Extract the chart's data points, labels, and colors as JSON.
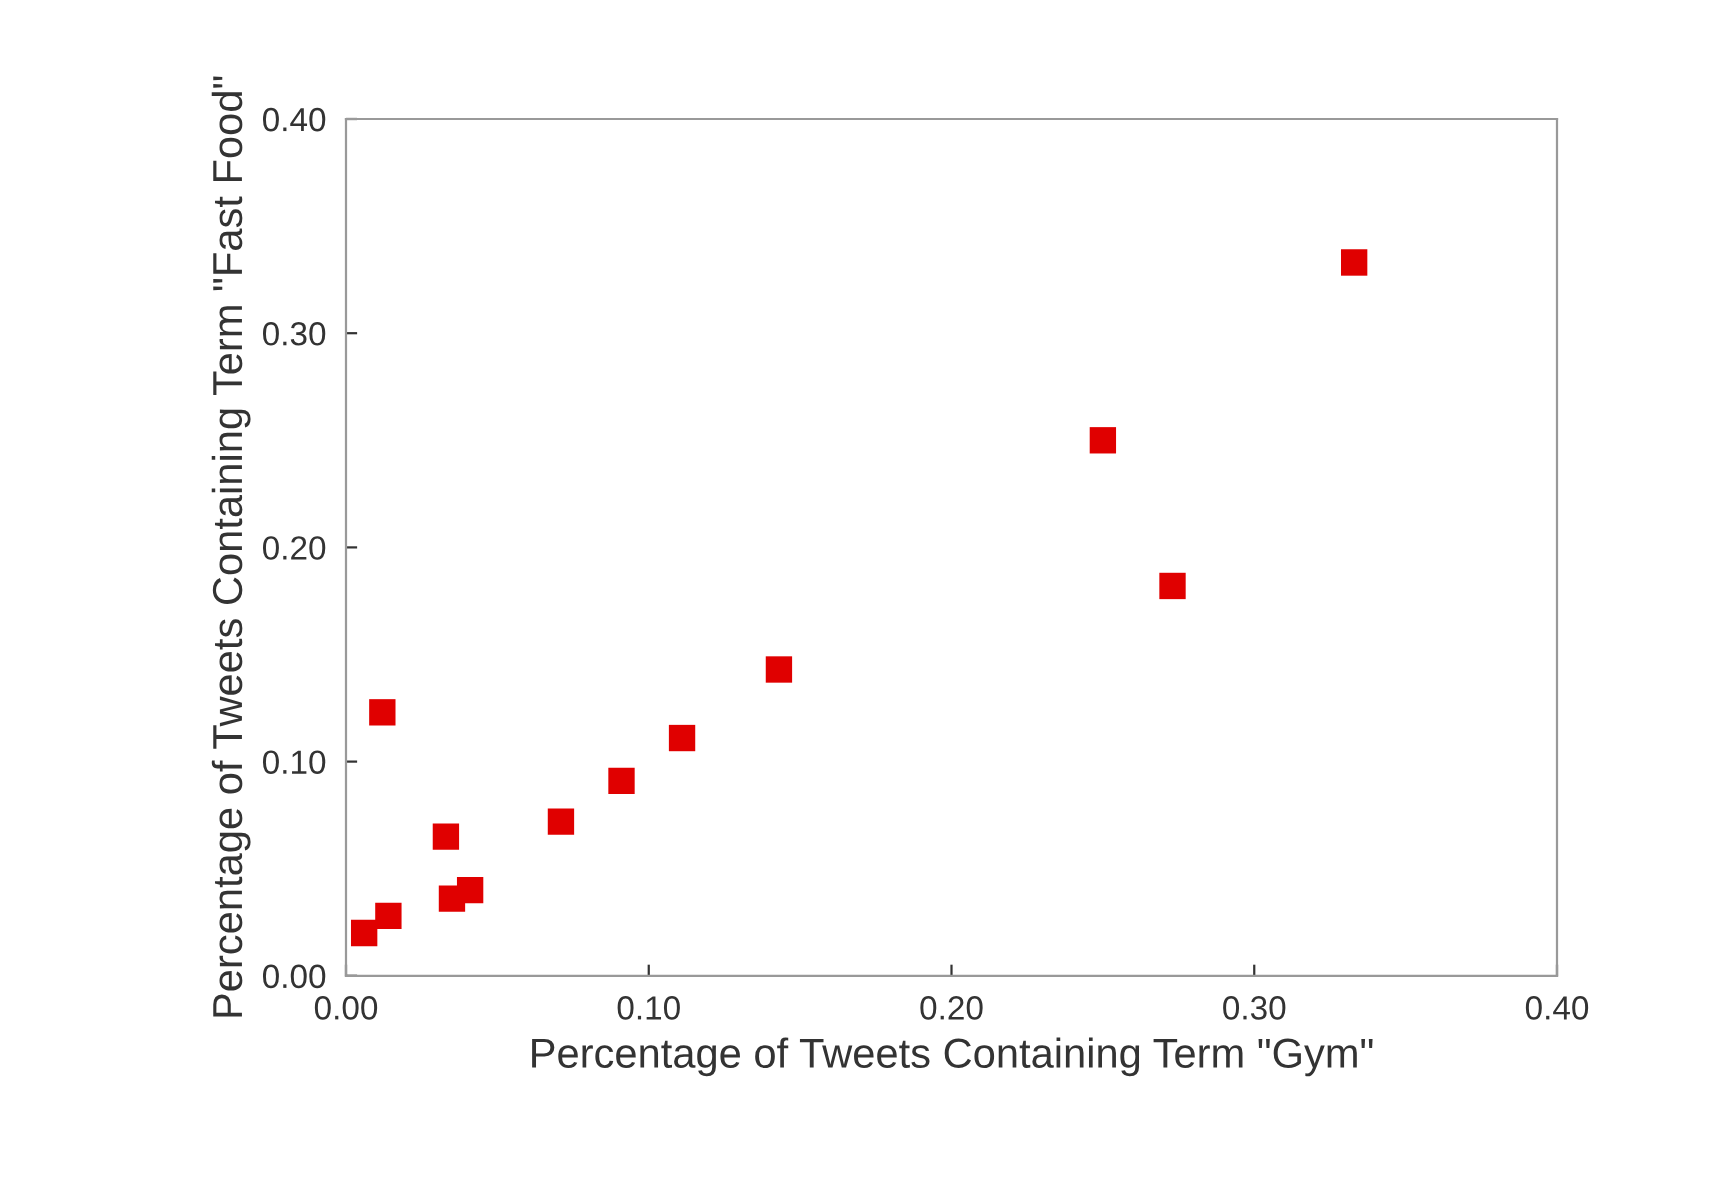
{
  "chart_data": {
    "type": "scatter",
    "xlabel": "Percentage of Tweets Containing Term \"Gym\"",
    "ylabel": "Percentage of Tweets Containing Term \"Fast Food\"",
    "x": [
      0.006,
      0.014,
      0.012,
      0.033,
      0.035,
      0.041,
      0.071,
      0.091,
      0.111,
      0.143,
      0.25,
      0.273,
      0.333
    ],
    "series": [
      {
        "color": "#e00000",
        "values": [
          0.02,
          0.028,
          0.123,
          0.065,
          0.036,
          0.04,
          0.072,
          0.091,
          0.111,
          0.143,
          0.25,
          0.182,
          0.333
        ]
      }
    ],
    "marker": "square",
    "grid": false,
    "xlim": [
      0,
      0.4
    ],
    "ylim": [
      0,
      0.4
    ],
    "xticks": [
      {
        "value": 0,
        "label": "0.00"
      },
      {
        "value": 0.1,
        "label": "0.10"
      },
      {
        "value": 0.2,
        "label": "0.20"
      },
      {
        "value": 0.3,
        "label": "0.30"
      },
      {
        "value": 0.4,
        "label": "0.40"
      }
    ],
    "yticks": [
      {
        "value": 0,
        "label": "0.00"
      },
      {
        "value": 0.1,
        "label": "0.10"
      },
      {
        "value": 0.2,
        "label": "0.20"
      },
      {
        "value": 0.3,
        "label": "0.30"
      },
      {
        "value": 0.4,
        "label": "0.40"
      }
    ]
  }
}
